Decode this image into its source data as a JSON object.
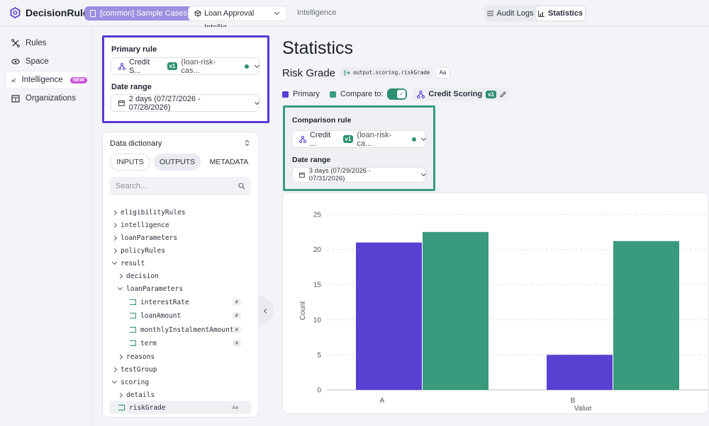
{
  "topbar": {
    "brand": "DecisionRules",
    "space_pill": "[common] Sample Cases",
    "rule_select": "Loan Approval Intellig...",
    "crumb": "Intelligence",
    "audit_logs": "Audit Logs",
    "statistics": "Statistics"
  },
  "nav": {
    "items": [
      {
        "label": "Rules",
        "icon": "rules-icon"
      },
      {
        "label": "Space",
        "icon": "space-icon"
      },
      {
        "label": "Intelligence",
        "icon": "chart-icon",
        "badge": "NEW"
      },
      {
        "label": "Organizations",
        "icon": "organizations-icon"
      }
    ]
  },
  "primary": {
    "rule_label": "Primary rule",
    "rule_name": "Credit S...",
    "rule_version": "v1",
    "rule_alias": "(loan-risk-cas...",
    "date_label": "Date range",
    "date_value": "2 days (07/27/2026 - 07/28/2026)"
  },
  "comparison": {
    "rule_label": "Comparison rule",
    "rule_name": "Credit ...",
    "rule_version": "v1",
    "rule_alias": "(loan-risk-ca...",
    "date_label": "Date range",
    "date_value": "3 days (07/29/2026 - 07/31/2026)"
  },
  "dictionary": {
    "title": "Data dictionary",
    "tabs": [
      "INPUTS",
      "OUTPUTS",
      "METADATA"
    ],
    "search_placeholder": "Search...",
    "tree": [
      {
        "label": "eligibilityRules",
        "type": "folder",
        "open": false,
        "depth": 0
      },
      {
        "label": "intelligence",
        "type": "folder",
        "open": false,
        "depth": 0
      },
      {
        "label": "loanParameters",
        "type": "folder",
        "open": false,
        "depth": 0
      },
      {
        "label": "policyRules",
        "type": "folder",
        "open": false,
        "depth": 0
      },
      {
        "label": "result",
        "type": "folder",
        "open": true,
        "depth": 0
      },
      {
        "label": "decision",
        "type": "folder",
        "open": false,
        "depth": 1
      },
      {
        "label": "loanParameters",
        "type": "folder",
        "open": true,
        "depth": 1
      },
      {
        "label": "interestRate",
        "type": "leaf",
        "badge": "#",
        "depth": 2
      },
      {
        "label": "loanAmount",
        "type": "leaf",
        "badge": "#",
        "depth": 2
      },
      {
        "label": "monthlyInstalmentAmount",
        "type": "leaf",
        "badge": "#",
        "depth": 2
      },
      {
        "label": "term",
        "type": "leaf",
        "badge": "#",
        "depth": 2
      },
      {
        "label": "reasons",
        "type": "folder",
        "open": false,
        "depth": 1
      },
      {
        "label": "testGroup",
        "type": "folder",
        "open": false,
        "depth": 0
      },
      {
        "label": "scoring",
        "type": "folder",
        "open": true,
        "depth": 0
      },
      {
        "label": "details",
        "type": "folder",
        "open": false,
        "depth": 1
      },
      {
        "label": "riskGrade",
        "type": "leaf",
        "badge": "Aa",
        "depth": 1,
        "selected": true
      }
    ]
  },
  "main": {
    "title": "Statistics",
    "subtitle": "Risk Grade",
    "path": "output.scoring.riskGrade",
    "type_chip": "Aa",
    "legend_primary": "Primary",
    "compare_label": "Compare to:",
    "compare_rule": "Credit Scoring",
    "compare_version": "v1"
  },
  "colors": {
    "primary": "#5a3fd3",
    "compare": "#3a9a7e"
  },
  "chart_data": {
    "type": "bar",
    "categories": [
      "A",
      "B"
    ],
    "series": [
      {
        "name": "Primary",
        "values": [
          21,
          5
        ]
      },
      {
        "name": "Compare to",
        "values": [
          22.5,
          21.2
        ]
      }
    ],
    "xlabel": "Value",
    "ylabel": "Count",
    "ylim": [
      0,
      25
    ],
    "yticks": [
      0,
      5,
      10,
      15,
      20,
      25
    ],
    "grid": true
  }
}
